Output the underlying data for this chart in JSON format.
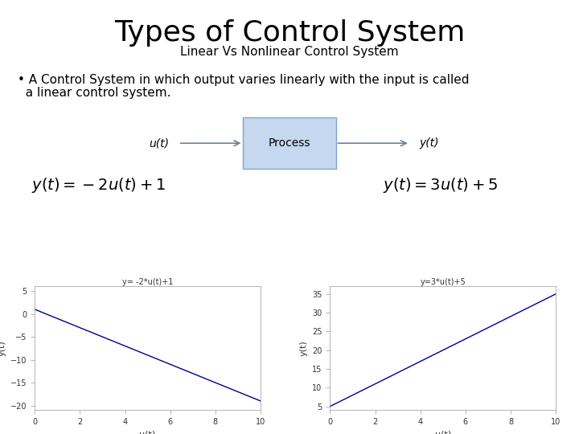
{
  "title": "Types of Control System",
  "subtitle": "Linear Vs Nonlinear Control System",
  "bullet_line1": "• A Control System in which output varies linearly with the input is called",
  "bullet_line2": "  a linear control system.",
  "process_box_label": "Process",
  "u_label": "u(t)",
  "y_label": "y(t)",
  "plot1_title": "y= -2*u(t)+1",
  "plot2_title": "y=3*u(t)+5",
  "plot1_xlabel": "u(t)",
  "plot2_xlabel": "u(t)",
  "plot1_ylabel": "y(t)",
  "plot2_ylabel": "y(t)",
  "x_range": [
    0,
    10
  ],
  "line_color": "#00008B",
  "box_facecolor": "#C5D8F0",
  "box_edgecolor": "#7BA7CC",
  "bg_color": "#FFFFFF",
  "title_fontsize": 26,
  "subtitle_fontsize": 11,
  "bullet_fontsize": 11,
  "eq_fontsize": 14,
  "arrow_color": "#708090"
}
